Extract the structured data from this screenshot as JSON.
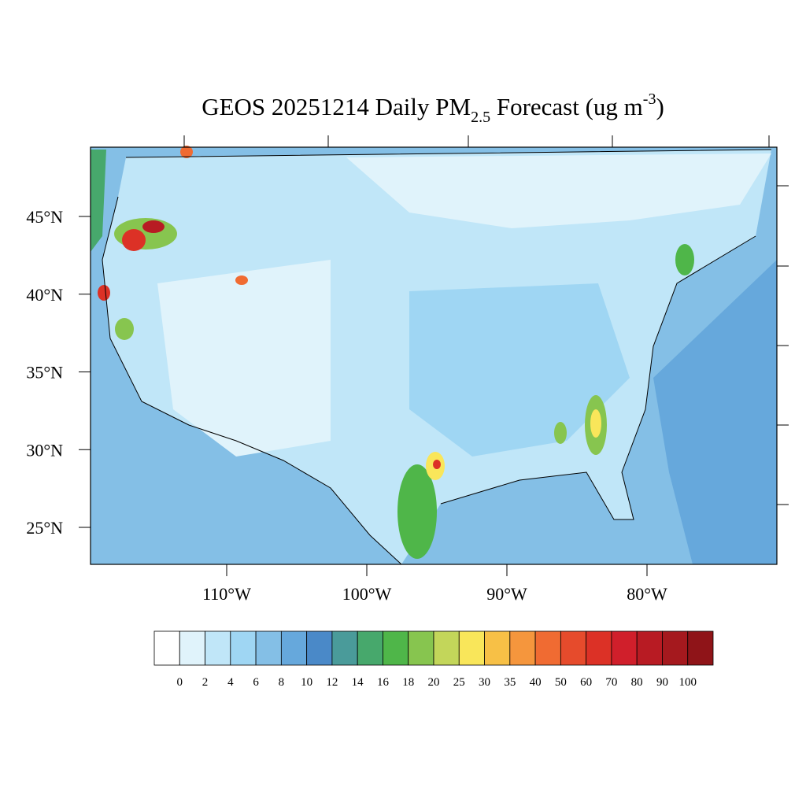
{
  "map": {
    "title": {
      "main": "GEOS 20251214 Daily PM",
      "sub": "2.5",
      "mid": " Forecast (ug m",
      "sup": "-3",
      "end": ")"
    },
    "lat_ticks": [
      {
        "value": 45,
        "label": "45°N"
      },
      {
        "value": 40,
        "label": "40°N"
      },
      {
        "value": 35,
        "label": "35°N"
      },
      {
        "value": 30,
        "label": "30°N"
      },
      {
        "value": 25,
        "label": "25°N"
      }
    ],
    "lon_ticks": [
      {
        "value": -110,
        "label": "110°W"
      },
      {
        "value": -100,
        "label": "100°W"
      },
      {
        "value": -90,
        "label": "90°W"
      },
      {
        "value": -80,
        "label": "80°W"
      }
    ],
    "colorbar": {
      "levels": [
        0,
        2,
        4,
        6,
        8,
        10,
        12,
        14,
        16,
        18,
        20,
        25,
        30,
        35,
        40,
        50,
        60,
        70,
        80,
        90,
        100
      ],
      "colors": [
        "#ffffff",
        "#e0f3fb",
        "#c0e6f8",
        "#9fd6f3",
        "#84bfe6",
        "#66a8dc",
        "#4a89c8",
        "#4a9b9a",
        "#47a86c",
        "#4fb649",
        "#87c54f",
        "#c3d65a",
        "#f9e65a",
        "#f7c046",
        "#f5963d",
        "#f06b32",
        "#e64b2c",
        "#dc3126",
        "#d01f2b",
        "#b81b23",
        "#a5191e",
        "#8f1418"
      ]
    }
  }
}
